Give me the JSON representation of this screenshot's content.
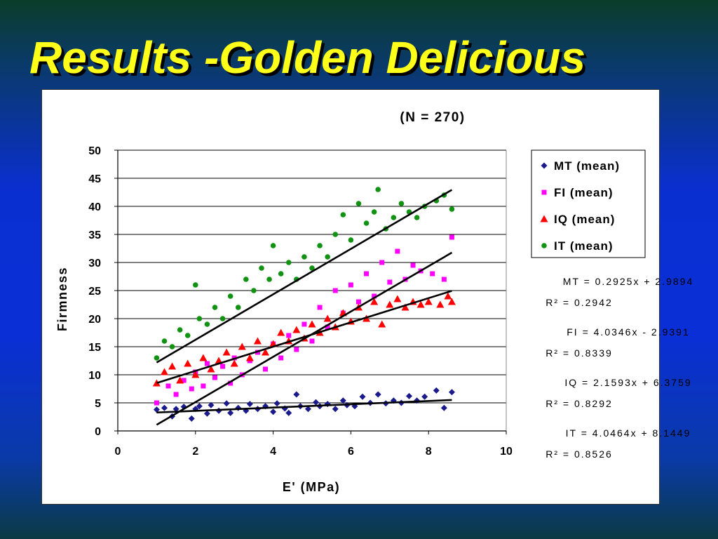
{
  "slide": {
    "title": "Results -Golden Delicious"
  },
  "colors": {
    "MT": "#1a1a8c",
    "FI": "#ff00ff",
    "IQ": "#ff0000",
    "IT": "#129212",
    "trend": "#000000",
    "title": "#ffff1a"
  },
  "chart_data": {
    "type": "scatter",
    "title": "(N = 270)",
    "xlabel": "E' (MPa)",
    "ylabel": "Firmness",
    "xlim": [
      0,
      10
    ],
    "ylim": [
      0,
      50
    ],
    "xticks": [
      "0",
      "2",
      "4",
      "6",
      "8",
      "10"
    ],
    "yticks": [
      "0",
      "5",
      "10",
      "15",
      "20",
      "25",
      "30",
      "35",
      "40",
      "45",
      "50"
    ],
    "grid": "horizontal",
    "legend_position": "right",
    "series": [
      {
        "name": "MT (mean)",
        "marker": "diamond",
        "color": "#1a1a8c",
        "trendline": {
          "slope": 0.2925,
          "intercept": 2.9894,
          "xrange": [
            1.0,
            8.6
          ]
        },
        "equation": "MT = 0.2925x + 2.9894",
        "r2": "R² = 0.2942",
        "points": [
          [
            1.0,
            3.8
          ],
          [
            1.2,
            4.1
          ],
          [
            1.4,
            2.6
          ],
          [
            1.5,
            3.9
          ],
          [
            1.7,
            4.3
          ],
          [
            1.9,
            2.2
          ],
          [
            2.0,
            3.9
          ],
          [
            2.1,
            4.4
          ],
          [
            2.3,
            3.1
          ],
          [
            2.4,
            4.6
          ],
          [
            2.6,
            3.6
          ],
          [
            2.8,
            4.9
          ],
          [
            2.9,
            3.2
          ],
          [
            3.1,
            4.1
          ],
          [
            3.3,
            3.6
          ],
          [
            3.4,
            4.8
          ],
          [
            3.6,
            3.9
          ],
          [
            3.8,
            4.4
          ],
          [
            4.0,
            3.4
          ],
          [
            4.1,
            4.9
          ],
          [
            4.3,
            4.0
          ],
          [
            4.4,
            3.2
          ],
          [
            4.6,
            6.5
          ],
          [
            4.7,
            4.4
          ],
          [
            4.9,
            3.9
          ],
          [
            5.1,
            5.1
          ],
          [
            5.2,
            4.4
          ],
          [
            5.4,
            4.8
          ],
          [
            5.6,
            3.9
          ],
          [
            5.8,
            5.4
          ],
          [
            5.9,
            4.6
          ],
          [
            6.1,
            4.4
          ],
          [
            6.3,
            6.1
          ],
          [
            6.5,
            5.0
          ],
          [
            6.7,
            6.5
          ],
          [
            6.9,
            4.9
          ],
          [
            7.1,
            5.4
          ],
          [
            7.3,
            5.0
          ],
          [
            7.5,
            6.2
          ],
          [
            7.7,
            5.4
          ],
          [
            7.9,
            6.1
          ],
          [
            8.2,
            7.2
          ],
          [
            8.4,
            4.1
          ],
          [
            8.6,
            6.9
          ]
        ]
      },
      {
        "name": "FI (mean)",
        "marker": "square",
        "color": "#ff00ff",
        "trendline": {
          "slope": 4.0346,
          "intercept": -2.9391,
          "xrange": [
            1.0,
            8.6
          ]
        },
        "equation": "FI = 4.0346x - 2.9391",
        "r2": "R² = 0.8339",
        "points": [
          [
            1.0,
            5.0
          ],
          [
            1.3,
            8.0
          ],
          [
            1.5,
            6.5
          ],
          [
            1.7,
            9.0
          ],
          [
            1.9,
            7.5
          ],
          [
            2.0,
            10.5
          ],
          [
            2.2,
            8.0
          ],
          [
            2.3,
            12.0
          ],
          [
            2.5,
            9.5
          ],
          [
            2.7,
            11.5
          ],
          [
            2.9,
            8.5
          ],
          [
            3.0,
            13.0
          ],
          [
            3.2,
            10.0
          ],
          [
            3.4,
            12.5
          ],
          [
            3.6,
            14.0
          ],
          [
            3.8,
            11.0
          ],
          [
            4.0,
            15.5
          ],
          [
            4.2,
            13.0
          ],
          [
            4.4,
            17.0
          ],
          [
            4.6,
            14.5
          ],
          [
            4.8,
            19.0
          ],
          [
            5.0,
            16.0
          ],
          [
            5.2,
            22.0
          ],
          [
            5.4,
            18.5
          ],
          [
            5.6,
            25.0
          ],
          [
            5.8,
            21.0
          ],
          [
            6.0,
            26.0
          ],
          [
            6.2,
            23.0
          ],
          [
            6.4,
            28.0
          ],
          [
            6.6,
            24.0
          ],
          [
            6.8,
            30.0
          ],
          [
            7.0,
            26.5
          ],
          [
            7.2,
            32.0
          ],
          [
            7.4,
            27.0
          ],
          [
            7.6,
            29.5
          ],
          [
            7.8,
            28.5
          ],
          [
            8.1,
            28.0
          ],
          [
            8.4,
            27.0
          ],
          [
            8.6,
            34.5
          ]
        ]
      },
      {
        "name": "IQ (mean)",
        "marker": "triangle",
        "color": "#ff0000",
        "trendline": {
          "slope": 2.1593,
          "intercept": 6.3759,
          "xrange": [
            1.0,
            8.6
          ]
        },
        "equation": "IQ = 2.1593x + 6.3759",
        "r2": "R² = 0.8292",
        "points": [
          [
            1.0,
            8.5
          ],
          [
            1.2,
            10.5
          ],
          [
            1.4,
            11.5
          ],
          [
            1.6,
            9.0
          ],
          [
            1.8,
            12.0
          ],
          [
            2.0,
            10.0
          ],
          [
            2.2,
            13.0
          ],
          [
            2.4,
            11.0
          ],
          [
            2.6,
            12.5
          ],
          [
            2.8,
            14.0
          ],
          [
            3.0,
            12.0
          ],
          [
            3.2,
            15.0
          ],
          [
            3.4,
            13.0
          ],
          [
            3.6,
            16.0
          ],
          [
            3.8,
            14.0
          ],
          [
            4.0,
            15.5
          ],
          [
            4.2,
            17.5
          ],
          [
            4.4,
            16.0
          ],
          [
            4.6,
            18.0
          ],
          [
            4.8,
            16.5
          ],
          [
            5.0,
            19.0
          ],
          [
            5.2,
            17.5
          ],
          [
            5.4,
            20.0
          ],
          [
            5.6,
            18.5
          ],
          [
            5.8,
            21.0
          ],
          [
            6.0,
            19.5
          ],
          [
            6.2,
            22.0
          ],
          [
            6.4,
            20.0
          ],
          [
            6.6,
            23.0
          ],
          [
            6.8,
            19.0
          ],
          [
            7.0,
            22.5
          ],
          [
            7.2,
            23.5
          ],
          [
            7.4,
            22.0
          ],
          [
            7.6,
            23.0
          ],
          [
            7.8,
            22.5
          ],
          [
            8.0,
            23.0
          ],
          [
            8.3,
            22.5
          ],
          [
            8.5,
            24.0
          ],
          [
            8.6,
            23.0
          ]
        ]
      },
      {
        "name": "IT (mean)",
        "marker": "circle",
        "color": "#129212",
        "trendline": {
          "slope": 4.0464,
          "intercept": 8.1449,
          "xrange": [
            1.0,
            8.6
          ]
        },
        "equation": "IT = 4.0464x + 8.1449",
        "r2": "R² = 0.8526",
        "points": [
          [
            1.0,
            13.0
          ],
          [
            1.2,
            16.0
          ],
          [
            1.4,
            15.0
          ],
          [
            1.6,
            18.0
          ],
          [
            1.8,
            17.0
          ],
          [
            2.0,
            26.0
          ],
          [
            2.1,
            20.0
          ],
          [
            2.3,
            19.0
          ],
          [
            2.5,
            22.0
          ],
          [
            2.7,
            20.0
          ],
          [
            2.9,
            24.0
          ],
          [
            3.1,
            22.0
          ],
          [
            3.3,
            27.0
          ],
          [
            3.5,
            25.0
          ],
          [
            3.7,
            29.0
          ],
          [
            3.9,
            27.0
          ],
          [
            4.0,
            33.0
          ],
          [
            4.2,
            28.0
          ],
          [
            4.4,
            30.0
          ],
          [
            4.6,
            27.0
          ],
          [
            4.8,
            31.0
          ],
          [
            5.0,
            29.0
          ],
          [
            5.2,
            33.0
          ],
          [
            5.4,
            31.0
          ],
          [
            5.6,
            35.0
          ],
          [
            5.8,
            38.5
          ],
          [
            6.0,
            34.0
          ],
          [
            6.2,
            40.5
          ],
          [
            6.4,
            37.0
          ],
          [
            6.6,
            39.0
          ],
          [
            6.7,
            43.0
          ],
          [
            6.9,
            36.0
          ],
          [
            7.1,
            38.0
          ],
          [
            7.3,
            40.5
          ],
          [
            7.5,
            39.0
          ],
          [
            7.7,
            38.0
          ],
          [
            7.9,
            40.0
          ],
          [
            8.2,
            41.0
          ],
          [
            8.4,
            42.0
          ],
          [
            8.6,
            39.5
          ]
        ]
      }
    ]
  }
}
